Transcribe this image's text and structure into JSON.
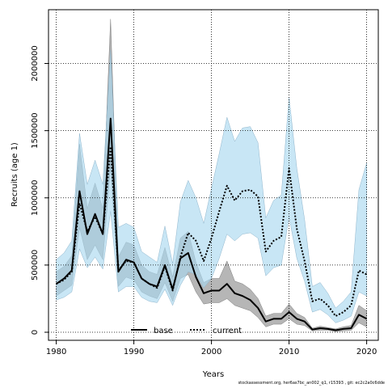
{
  "chart_data": {
    "type": "line",
    "xlabel": "Years",
    "ylabel": "Recruits (age 1)",
    "xlim": [
      1979,
      2021.5
    ],
    "ylim": [
      -60000,
      2400000
    ],
    "xticks": [
      1980,
      1990,
      2000,
      2010,
      2020
    ],
    "yticks": [
      0,
      500000,
      1000000,
      1500000,
      2000000
    ],
    "grid": true,
    "legend_position": "bottom-center",
    "x": [
      1980,
      1981,
      1982,
      1983,
      1984,
      1985,
      1986,
      1987,
      1988,
      1989,
      1990,
      1991,
      1992,
      1993,
      1994,
      1995,
      1996,
      1997,
      1998,
      1999,
      2000,
      2001,
      2002,
      2003,
      2004,
      2005,
      2006,
      2007,
      2008,
      2009,
      2010,
      2011,
      2012,
      2013,
      2014,
      2015,
      2016,
      2017,
      2018,
      2019,
      2020
    ],
    "series": [
      {
        "name": "base",
        "color": "#000000",
        "band_color": "#a9a9a9",
        "line_style": "solid",
        "values": [
          360000,
          400000,
          460000,
          1050000,
          730000,
          880000,
          730000,
          1590000,
          450000,
          540000,
          520000,
          400000,
          360000,
          340000,
          500000,
          320000,
          550000,
          590000,
          410000,
          290000,
          310000,
          310000,
          360000,
          290000,
          270000,
          240000,
          180000,
          80000,
          100000,
          100000,
          150000,
          100000,
          80000,
          20000,
          30000,
          25000,
          15000,
          25000,
          30000,
          130000,
          100000
        ],
        "lower": [
          270000,
          310000,
          350000,
          780000,
          540000,
          650000,
          540000,
          1240000,
          340000,
          410000,
          390000,
          300000,
          270000,
          250000,
          370000,
          230000,
          400000,
          430000,
          300000,
          210000,
          220000,
          220000,
          250000,
          200000,
          180000,
          160000,
          110000,
          40000,
          60000,
          60000,
          100000,
          60000,
          50000,
          10000,
          15000,
          15000,
          5000,
          10000,
          15000,
          70000,
          40000
        ],
        "upper": [
          450000,
          490000,
          570000,
          1400000,
          920000,
          1110000,
          920000,
          2330000,
          560000,
          670000,
          650000,
          500000,
          450000,
          430000,
          630000,
          410000,
          700000,
          750000,
          520000,
          370000,
          400000,
          400000,
          530000,
          380000,
          360000,
          320000,
          250000,
          120000,
          140000,
          140000,
          210000,
          140000,
          110000,
          30000,
          45000,
          35000,
          25000,
          40000,
          50000,
          200000,
          160000
        ]
      },
      {
        "name": "current",
        "color": "#000000",
        "band_color": "#aad8f0",
        "line_style": "dashed",
        "values": [
          360000,
          390000,
          450000,
          960000,
          750000,
          860000,
          730000,
          1380000,
          460000,
          530000,
          520000,
          400000,
          360000,
          330000,
          490000,
          310000,
          560000,
          740000,
          680000,
          530000,
          700000,
          900000,
          1090000,
          980000,
          1050000,
          1060000,
          1010000,
          600000,
          680000,
          710000,
          1220000,
          770000,
          530000,
          230000,
          250000,
          200000,
          120000,
          150000,
          200000,
          460000,
          430000
        ],
        "lower": [
          240000,
          260000,
          300000,
          620000,
          480000,
          560000,
          470000,
          900000,
          300000,
          340000,
          340000,
          260000,
          230000,
          220000,
          320000,
          200000,
          350000,
          450000,
          430000,
          330000,
          400000,
          550000,
          730000,
          680000,
          730000,
          740000,
          700000,
          420000,
          480000,
          500000,
          860000,
          550000,
          380000,
          150000,
          170000,
          130000,
          70000,
          90000,
          120000,
          300000,
          270000
        ],
        "upper": [
          540000,
          590000,
          680000,
          1480000,
          1100000,
          1280000,
          1100000,
          2100000,
          780000,
          810000,
          780000,
          600000,
          560000,
          520000,
          790000,
          510000,
          970000,
          1130000,
          1000000,
          810000,
          1070000,
          1330000,
          1600000,
          1420000,
          1520000,
          1530000,
          1410000,
          850000,
          980000,
          1020000,
          1750000,
          1220000,
          840000,
          340000,
          370000,
          290000,
          180000,
          230000,
          300000,
          1060000,
          1260000
        ]
      }
    ]
  },
  "footer": "stockassessment.org, her6as7bc_an002_q1, r15393 , git: ec2c2a0c6dde"
}
